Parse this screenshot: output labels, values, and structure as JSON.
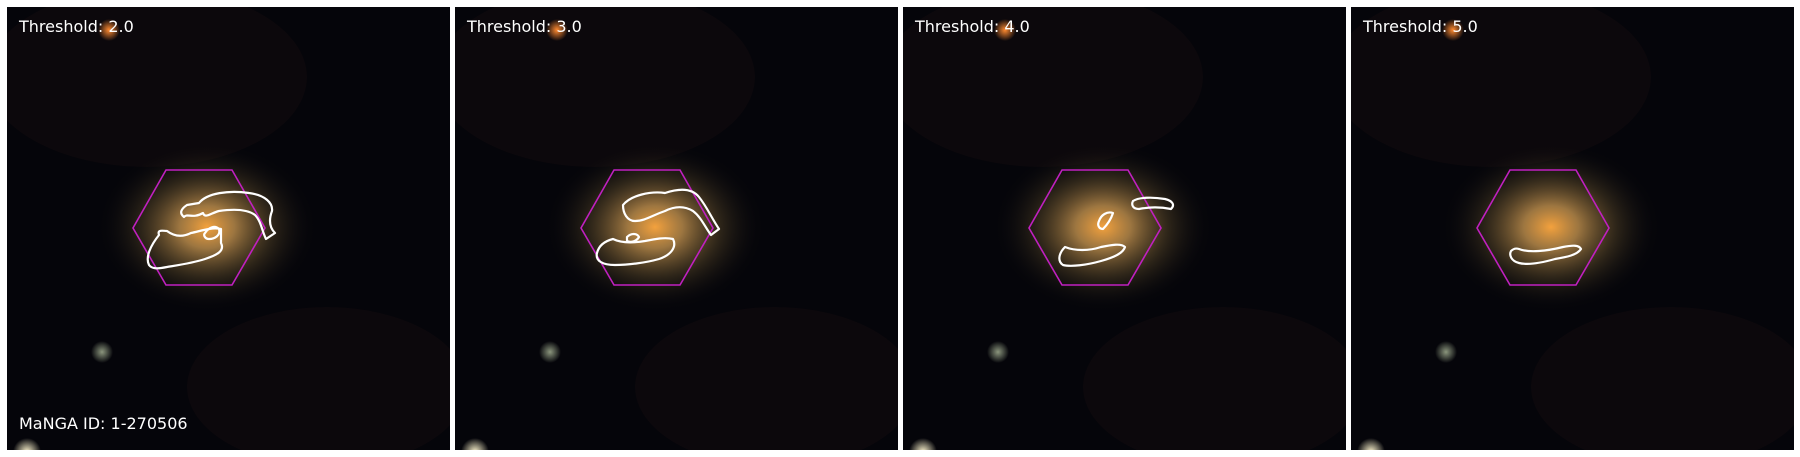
{
  "figure": {
    "panels": [
      {
        "label": "Threshold: 2.0"
      },
      {
        "label": "Threshold: 3.0"
      },
      {
        "label": "Threshold: 4.0"
      },
      {
        "label": "Threshold: 5.0"
      }
    ],
    "galaxy_id_label": "MaNGA ID: 1-270506"
  },
  "colors": {
    "background": "#05050a",
    "contour": "#ffffff",
    "ifu_hexagon": "#c020c0",
    "galaxy_core": "#f0a040",
    "galaxy_halo": "#8a7a45",
    "star_orange": "#e07a2a"
  }
}
